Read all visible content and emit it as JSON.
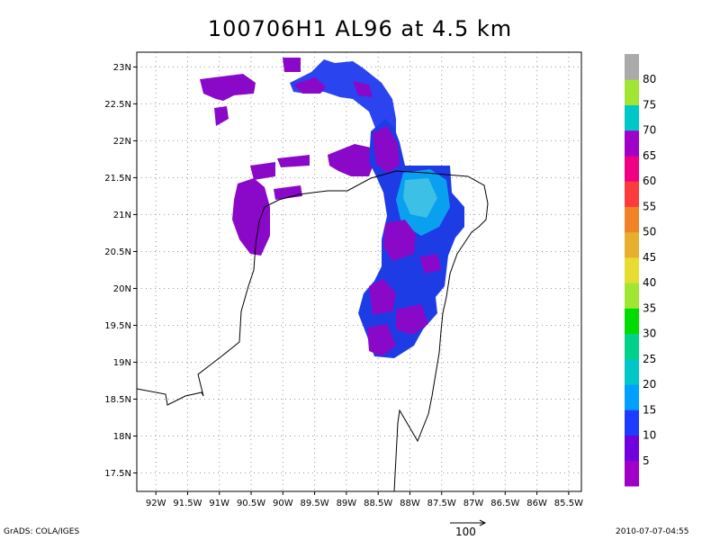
{
  "title": "100706H1 AL96 at 4.5 km",
  "lat_labels": [
    "23N",
    "22.5N",
    "22N",
    "21.5N",
    "21N",
    "20.5N",
    "20N",
    "19.5N",
    "19N",
    "18.5N",
    "18N",
    "17.5N"
  ],
  "lat_values": [
    23,
    22.5,
    22,
    21.5,
    21,
    20.5,
    20,
    19.5,
    19,
    18.5,
    18,
    17.5
  ],
  "lon_labels": [
    "92W",
    "91.5W",
    "91W",
    "90.5W",
    "90W",
    "89.5W",
    "89W",
    "88.5W",
    "88W",
    "87.5W",
    "87W",
    "86.5W",
    "86W",
    "85.5W"
  ],
  "lon_values": [
    -92,
    -91.5,
    -91,
    -90.5,
    -90,
    -89.5,
    -89,
    -88.5,
    -88,
    -87.5,
    -87,
    -86.5,
    -86,
    -85.5
  ],
  "extent": {
    "lon_min": -92.3,
    "lon_max": -85.3,
    "lat_min": 17.25,
    "lat_max": 23.2
  },
  "colorbar": {
    "labels": [
      "5",
      "10",
      "15",
      "20",
      "25",
      "30",
      "35",
      "40",
      "45",
      "50",
      "55",
      "60",
      "65",
      "70",
      "75",
      "80"
    ],
    "colors": [
      "#a000c8",
      "#7000dc",
      "#1e3cff",
      "#00a0ff",
      "#00c8c8",
      "#00d28c",
      "#00dc00",
      "#a0e632",
      "#e6dc32",
      "#e6af2d",
      "#f08228",
      "#fa3c3c",
      "#f00082",
      "#a000c8",
      "#00c8c8",
      "#a0e632",
      "#aaaaaa"
    ]
  },
  "footer": {
    "left": "GrADS: COLA/IGES",
    "vector_scale": "100",
    "timestamp": "2010-07-07-04:55"
  }
}
